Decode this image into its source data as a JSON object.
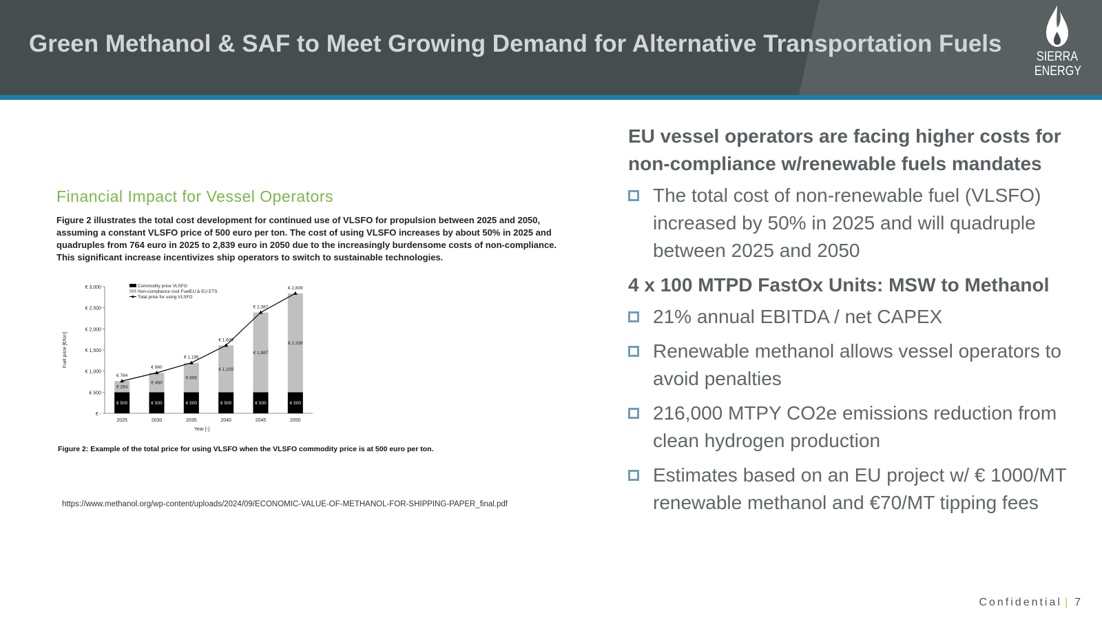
{
  "header": {
    "title": "Green Methanol & SAF to Meet Growing Demand for Alternative Transportation Fuels",
    "logo_line1": "SIERRA",
    "logo_line2": "ENERGY"
  },
  "figure": {
    "heading": "Financial Impact for Vessel Operators",
    "description": "Figure 2 illustrates the total cost development for continued use of VLSFO for propulsion between 2025 and 2050, assuming a constant VLSFO price of 500 euro per ton. The cost of using VLSFO increases by about 50% in 2025 and quadruples from 764 euro in 2025 to 2,839 euro in 2050 due to the increasingly burdensome costs of non-compliance. This significant increase incentivizes ship operators to switch to sustainable technologies.",
    "caption": "Figure 2: Example of the total price for using VLSFO when the VLSFO commodity price is at 500 euro per ton.",
    "source": "https://www.methanol.org/wp-content/uploads/2024/09/ECONOMIC-VALUE-OF-METHANOL-FOR-SHIPPING-PAPER_final.pdf"
  },
  "chart_data": {
    "type": "bar",
    "categories": [
      "2025",
      "2030",
      "2035",
      "2040",
      "2045",
      "2050"
    ],
    "series": [
      {
        "name": "Commodity price VLSFO",
        "kind": "stacked-bar",
        "color": "#000000",
        "values": [
          500,
          500,
          500,
          500,
          500,
          500
        ],
        "labels": [
          "€ 500",
          "€ 500",
          "€ 500",
          "€ 500",
          "€ 500",
          "€ 500"
        ]
      },
      {
        "name": "Non-compliance cost FuelEU & EU ETS",
        "kind": "stacked-bar",
        "color": "#c0c0c0",
        "values": [
          264,
          460,
          695,
          1109,
          1887,
          2339
        ],
        "labels": [
          "€ 264",
          "€ 460",
          "€ 695",
          "€ 1,109",
          "€ 1,887",
          "€ 2,339"
        ]
      },
      {
        "name": "Total price for using VLSFO",
        "kind": "line",
        "color": "#000000",
        "values": [
          764,
          960,
          1195,
          1609,
          2387,
          2839
        ],
        "labels": [
          "€ 764",
          "€ 960",
          "€ 1,195",
          "€ 1,609",
          "€ 2,387",
          "€ 2,839"
        ]
      }
    ],
    "ylim": [
      0,
      3000
    ],
    "yticks": [
      0,
      500,
      1000,
      1500,
      2000,
      2500,
      3000
    ],
    "ytick_labels": [
      "€ -",
      "€ 500",
      "€ 1,000",
      "€ 1,500",
      "€ 2,000",
      "€ 2,500",
      "€ 3,000"
    ],
    "xlabel": "Year [-]",
    "ylabel": "Fuel price [€/ton]",
    "legend": "top-left",
    "grid": false
  },
  "right": {
    "heading1": "EU vessel operators are facing higher costs for non-compliance w/renewable fuels mandates",
    "list1": [
      "The total cost of non-renewable fuel (VLSFO) increased by 50% in 2025 and will quadruple between 2025 and 2050"
    ],
    "heading2": "4 x 100 MTPD FastOx Units: MSW to Methanol",
    "list2": [
      "21% annual EBITDA / net CAPEX",
      "Renewable methanol allows vessel operators to avoid penalties",
      "216,000 MTPY CO2e emissions reduction from clean hydrogen production",
      "Estimates based on an EU project w/ € 1000/MT renewable methanol and €70/MT tipping fees"
    ]
  },
  "footer": {
    "label": "Confidential",
    "separator": "|",
    "page": "7"
  },
  "colors": {
    "header_bg": "#454d4f",
    "header_stripe": "#1f7ea4",
    "figure_heading": "#7bb84a",
    "bullet": "#6e9dba"
  }
}
